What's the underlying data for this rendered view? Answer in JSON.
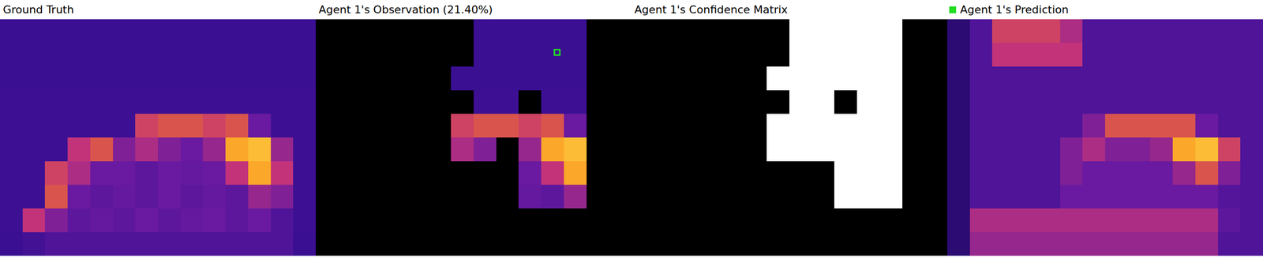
{
  "chart_data": [
    {
      "type": "heatmap",
      "title": "Ground Truth",
      "color": "plasma",
      "zlim": [
        0,
        1
      ],
      "tick_labels": false,
      "cells": [
        [
          0.12,
          0.12,
          0.12,
          0.12,
          0.12,
          0.12,
          0.12,
          0.12,
          0.12,
          0.12,
          0.12,
          0.12,
          0.12,
          0.12
        ],
        [
          0.12,
          0.12,
          0.12,
          0.12,
          0.12,
          0.12,
          0.12,
          0.12,
          0.12,
          0.12,
          0.12,
          0.12,
          0.12,
          0.12
        ],
        [
          0.12,
          0.12,
          0.12,
          0.12,
          0.12,
          0.12,
          0.12,
          0.12,
          0.12,
          0.12,
          0.12,
          0.12,
          0.12,
          0.12
        ],
        [
          0.13,
          0.13,
          0.13,
          0.13,
          0.13,
          0.13,
          0.13,
          0.13,
          0.13,
          0.13,
          0.13,
          0.13,
          0.13,
          0.13
        ],
        [
          0.13,
          0.13,
          0.13,
          0.13,
          0.13,
          0.13,
          0.55,
          0.6,
          0.6,
          0.55,
          0.6,
          0.3,
          0.13,
          0.13
        ],
        [
          0.13,
          0.13,
          0.13,
          0.5,
          0.6,
          0.35,
          0.45,
          0.35,
          0.3,
          0.4,
          0.85,
          0.9,
          0.4,
          0.13
        ],
        [
          0.13,
          0.13,
          0.55,
          0.45,
          0.3,
          0.3,
          0.25,
          0.3,
          0.28,
          0.3,
          0.5,
          0.85,
          0.5,
          0.13
        ],
        [
          0.13,
          0.13,
          0.6,
          0.3,
          0.25,
          0.28,
          0.25,
          0.3,
          0.25,
          0.28,
          0.25,
          0.4,
          0.35,
          0.13
        ],
        [
          0.13,
          0.5,
          0.35,
          0.25,
          0.28,
          0.25,
          0.3,
          0.25,
          0.28,
          0.3,
          0.25,
          0.3,
          0.2,
          0.13
        ],
        [
          0.12,
          0.15,
          0.2,
          0.2,
          0.2,
          0.2,
          0.2,
          0.2,
          0.2,
          0.2,
          0.2,
          0.2,
          0.2,
          0.12
        ]
      ]
    },
    {
      "type": "heatmap",
      "title": "Agent 1's Observation (21.40%)",
      "color": "plasma",
      "zlim": [
        0,
        1
      ],
      "tick_labels": false,
      "agent": {
        "position": [
          10.2,
          0.9
        ],
        "color": "#22dd22",
        "marker": "square"
      },
      "cells": [
        [
          null,
          null,
          null,
          null,
          null,
          null,
          null,
          0.12,
          0.12,
          0.12,
          0.12,
          0.12,
          null,
          null
        ],
        [
          null,
          null,
          null,
          null,
          null,
          null,
          null,
          0.12,
          0.12,
          0.12,
          0.12,
          0.12,
          null,
          null
        ],
        [
          null,
          null,
          null,
          null,
          null,
          null,
          0.12,
          0.12,
          0.12,
          0.12,
          0.12,
          0.12,
          null,
          null
        ],
        [
          null,
          null,
          null,
          null,
          null,
          null,
          null,
          0.13,
          0.13,
          null,
          0.13,
          0.13,
          null,
          null
        ],
        [
          null,
          null,
          null,
          null,
          null,
          null,
          0.55,
          0.6,
          0.6,
          0.55,
          0.6,
          0.3,
          null,
          null
        ],
        [
          null,
          null,
          null,
          null,
          null,
          null,
          0.45,
          0.35,
          null,
          0.4,
          0.85,
          0.9,
          null,
          null
        ],
        [
          null,
          null,
          null,
          null,
          null,
          null,
          null,
          null,
          null,
          0.3,
          0.5,
          0.85,
          null,
          null
        ],
        [
          null,
          null,
          null,
          null,
          null,
          null,
          null,
          null,
          null,
          0.28,
          0.25,
          0.4,
          null,
          null
        ],
        [
          null,
          null,
          null,
          null,
          null,
          null,
          null,
          null,
          null,
          null,
          null,
          null,
          null,
          null
        ],
        [
          null,
          null,
          null,
          null,
          null,
          null,
          null,
          null,
          null,
          null,
          null,
          null,
          null,
          null
        ]
      ]
    },
    {
      "type": "heatmap",
      "title": "Agent 1's Confidence Matrix",
      "color": "gray",
      "zlim": [
        0,
        1
      ],
      "tick_labels": false,
      "cells": [
        [
          0,
          0,
          0,
          0,
          0,
          0,
          0,
          1,
          1,
          1,
          1,
          1,
          0,
          0
        ],
        [
          0,
          0,
          0,
          0,
          0,
          0,
          0,
          1,
          1,
          1,
          1,
          1,
          0,
          0
        ],
        [
          0,
          0,
          0,
          0,
          0,
          0,
          1,
          1,
          1,
          1,
          1,
          1,
          0,
          0
        ],
        [
          0,
          0,
          0,
          0,
          0,
          0,
          0,
          1,
          1,
          0,
          1,
          1,
          0,
          0
        ],
        [
          0,
          0,
          0,
          0,
          0,
          0,
          1,
          1,
          1,
          1,
          1,
          1,
          0,
          0
        ],
        [
          0,
          0,
          0,
          0,
          0,
          0,
          1,
          1,
          1,
          1,
          1,
          1,
          0,
          0
        ],
        [
          0,
          0,
          0,
          0,
          0,
          0,
          0,
          0,
          0,
          1,
          1,
          1,
          0,
          0
        ],
        [
          0,
          0,
          0,
          0,
          0,
          0,
          0,
          0,
          0,
          1,
          1,
          1,
          0,
          0
        ],
        [
          0,
          0,
          0,
          0,
          0,
          0,
          0,
          0,
          0,
          0,
          0,
          0,
          0,
          0
        ],
        [
          0,
          0,
          0,
          0,
          0,
          0,
          0,
          0,
          0,
          0,
          0,
          0,
          0,
          0
        ]
      ]
    },
    {
      "type": "heatmap",
      "title": "Agent 1's Prediction",
      "color": "plasma",
      "zlim": [
        0,
        1
      ],
      "tick_labels": false,
      "cells": [
        [
          0.06,
          0.2,
          0.55,
          0.55,
          0.55,
          0.45,
          0.2,
          0.2,
          0.2,
          0.2,
          0.2,
          0.2,
          0.2,
          0.2
        ],
        [
          0.06,
          0.2,
          0.5,
          0.5,
          0.5,
          0.5,
          0.2,
          0.2,
          0.2,
          0.2,
          0.2,
          0.2,
          0.2,
          0.2
        ],
        [
          0.06,
          0.2,
          0.2,
          0.2,
          0.2,
          0.2,
          0.2,
          0.2,
          0.2,
          0.2,
          0.2,
          0.2,
          0.2,
          0.2
        ],
        [
          0.06,
          0.2,
          0.2,
          0.2,
          0.2,
          0.2,
          0.2,
          0.2,
          0.2,
          0.2,
          0.2,
          0.2,
          0.2,
          0.2
        ],
        [
          0.06,
          0.2,
          0.2,
          0.2,
          0.2,
          0.2,
          0.35,
          0.6,
          0.6,
          0.6,
          0.6,
          0.3,
          0.2,
          0.2
        ],
        [
          0.06,
          0.2,
          0.2,
          0.2,
          0.2,
          0.35,
          0.45,
          0.35,
          0.35,
          0.4,
          0.85,
          0.9,
          0.55,
          0.2
        ],
        [
          0.06,
          0.2,
          0.2,
          0.2,
          0.2,
          0.35,
          0.3,
          0.3,
          0.3,
          0.3,
          0.4,
          0.6,
          0.35,
          0.2
        ],
        [
          0.06,
          0.2,
          0.2,
          0.2,
          0.2,
          0.3,
          0.3,
          0.3,
          0.3,
          0.3,
          0.3,
          0.3,
          0.22,
          0.2
        ],
        [
          0.06,
          0.45,
          0.45,
          0.45,
          0.45,
          0.45,
          0.45,
          0.45,
          0.45,
          0.45,
          0.45,
          0.45,
          0.25,
          0.2
        ],
        [
          0.06,
          0.4,
          0.4,
          0.4,
          0.4,
          0.4,
          0.4,
          0.4,
          0.4,
          0.4,
          0.4,
          0.4,
          0.2,
          0.2
        ]
      ]
    }
  ]
}
